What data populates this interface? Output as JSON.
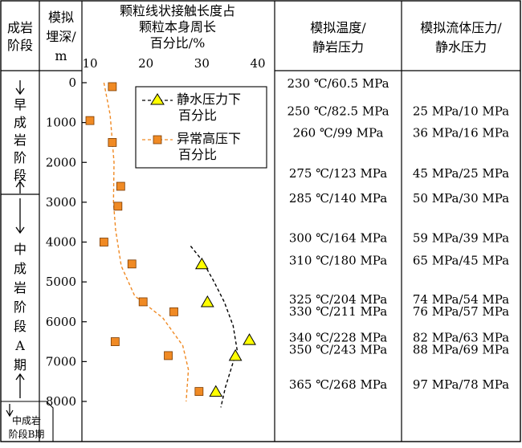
{
  "headers": {
    "stage": [
      "成岩",
      "阶段"
    ],
    "depth": [
      "模拟",
      "埋深/",
      "m"
    ],
    "ratio": [
      "颗粒线状接触长度占",
      "颗粒本身周长",
      "百分比/%"
    ],
    "temp": [
      "模拟温度/",
      "静岩压力"
    ],
    "fluid": [
      "模拟流体压力/",
      "静水压力"
    ]
  },
  "stages": {
    "early": [
      "早",
      "成",
      "岩",
      "阶",
      "段"
    ],
    "middleA": [
      "中",
      "成",
      "岩",
      "阶",
      "段",
      "A",
      "期"
    ],
    "middleB": [
      "中成岩",
      "阶段B期"
    ]
  },
  "legend": {
    "hydrostatic": [
      "静水压力下",
      "百分比"
    ],
    "overpressure": [
      "异常高压下",
      "百分比"
    ]
  },
  "table": [
    {
      "depth": 0,
      "temp": "230 ℃/60.5 MPa",
      "fluid": ""
    },
    {
      "depth": 700,
      "temp": "250 ℃/82.5 MPa",
      "fluid": "25 MPa/10 MPa"
    },
    {
      "depth": 1240,
      "temp": "260 ℃/99 MPa",
      "fluid": "36 MPa/16 MPa"
    },
    {
      "depth": 2260,
      "temp": "275 ℃/123 MPa",
      "fluid": "45 MPa/25 MPa"
    },
    {
      "depth": 2880,
      "temp": "285 ℃/140 MPa",
      "fluid": "50 MPa/30 MPa"
    },
    {
      "depth": 3880,
      "temp": "300 ℃/164 MPa",
      "fluid": "59 MPa/39 MPa"
    },
    {
      "depth": 4440,
      "temp": "310 ℃/180 MPa",
      "fluid": "65 MPa/45 MPa"
    },
    {
      "depth": 5420,
      "temp": "325 ℃/204 MPa",
      "fluid": "74 MPa/54 MPa"
    },
    {
      "depth": 5720,
      "temp": "330 ℃/211 MPa",
      "fluid": "76 MPa/57 MPa"
    },
    {
      "depth": 6380,
      "temp": "340 ℃/228 MPa",
      "fluid": "82 MPa/63 MPa"
    },
    {
      "depth": 6680,
      "temp": "350 ℃/243 MPa",
      "fluid": "88 MPa/69 MPa"
    },
    {
      "depth": 7560,
      "temp": "365 ℃/268 MPa",
      "fluid": "97 MPa/78 MPa"
    }
  ],
  "chart_data": {
    "type": "scatter",
    "xlim": [
      10,
      40
    ],
    "ylim": [
      0,
      8000
    ],
    "xticks": [
      10,
      20,
      30,
      40
    ],
    "yticks": [
      0,
      1000,
      2000,
      3000,
      4000,
      5000,
      6000,
      7000,
      8000
    ],
    "series": [
      {
        "name": "静水压力下百分比",
        "marker": "triangle",
        "color": "#ffff00",
        "points": [
          [
            30,
            4550
          ],
          [
            31,
            5500
          ],
          [
            36,
            6850
          ],
          [
            38.5,
            6450
          ],
          [
            32.5,
            7750
          ]
        ],
        "trend": [
          [
            28,
            4100
          ],
          [
            30,
            4450
          ],
          [
            32,
            4950
          ],
          [
            34,
            5500
          ],
          [
            35.6,
            6100
          ],
          [
            36.3,
            6700
          ],
          [
            35.4,
            7100
          ],
          [
            34.2,
            7650
          ],
          [
            33.4,
            8150
          ]
        ]
      },
      {
        "name": "异常高压下百分比",
        "marker": "square",
        "color": "#f08a24",
        "points": [
          [
            14,
            100
          ],
          [
            10,
            950
          ],
          [
            14,
            1500
          ],
          [
            15.5,
            2600
          ],
          [
            15,
            3100
          ],
          [
            12.5,
            4000
          ],
          [
            17.5,
            4550
          ],
          [
            19.5,
            5500
          ],
          [
            25,
            5750
          ],
          [
            14.5,
            6500
          ],
          [
            24,
            6850
          ],
          [
            29.5,
            7750
          ]
        ],
        "trend": [
          [
            12.5,
            0
          ],
          [
            13.6,
            800
          ],
          [
            14.3,
            2000
          ],
          [
            14.2,
            3000
          ],
          [
            14.6,
            3700
          ],
          [
            15.6,
            4600
          ],
          [
            18,
            5350
          ],
          [
            23,
            5900
          ],
          [
            26.6,
            6600
          ],
          [
            27.6,
            7200
          ],
          [
            27.2,
            8000
          ]
        ]
      }
    ]
  }
}
